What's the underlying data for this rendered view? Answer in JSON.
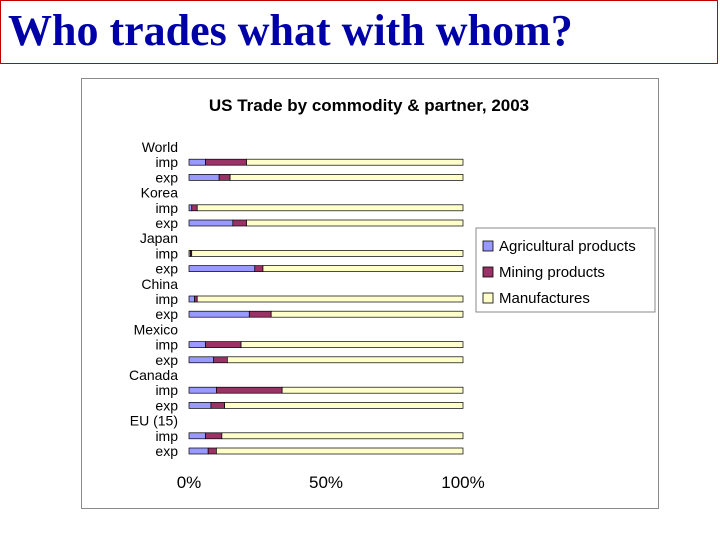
{
  "slide": {
    "title": "Who trades what with whom?"
  },
  "chart_data": {
    "type": "bar",
    "orientation": "horizontal",
    "stacked": "percent",
    "title": "US Trade by commodity & partner, 2003",
    "categories": [
      {
        "label": "World",
        "is_group_header": true
      },
      {
        "label": "imp"
      },
      {
        "label": "exp"
      },
      {
        "label": "Korea",
        "is_group_header": true
      },
      {
        "label": "imp"
      },
      {
        "label": "exp"
      },
      {
        "label": "Japan",
        "is_group_header": true
      },
      {
        "label": "imp"
      },
      {
        "label": "exp"
      },
      {
        "label": "China",
        "is_group_header": true
      },
      {
        "label": "imp"
      },
      {
        "label": "exp"
      },
      {
        "label": "Mexico",
        "is_group_header": true
      },
      {
        "label": "imp"
      },
      {
        "label": "exp"
      },
      {
        "label": "Canada",
        "is_group_header": true
      },
      {
        "label": "imp"
      },
      {
        "label": "exp"
      },
      {
        "label": "EU (15)",
        "is_group_header": true
      },
      {
        "label": "imp"
      },
      {
        "label": "exp"
      }
    ],
    "series": [
      {
        "name": "Agricultural products",
        "color": "#9999ff",
        "values": [
          null,
          6,
          11,
          null,
          1,
          16,
          null,
          0.5,
          24,
          null,
          2,
          22,
          null,
          6,
          9,
          null,
          10,
          8,
          null,
          6,
          7
        ]
      },
      {
        "name": "Mining products",
        "color": "#993366",
        "values": [
          null,
          15,
          4,
          null,
          2,
          5,
          null,
          0.5,
          3,
          null,
          1,
          8,
          null,
          13,
          5,
          null,
          24,
          5,
          null,
          6,
          3
        ]
      },
      {
        "name": "Manufactures",
        "color": "#ffffcc",
        "values": [
          null,
          79,
          85,
          null,
          97,
          79,
          null,
          99,
          73,
          null,
          97,
          70,
          null,
          81,
          86,
          null,
          66,
          87,
          null,
          88,
          90
        ]
      }
    ],
    "xlim": [
      0,
      100
    ],
    "xticks": [
      "0%",
      "50%",
      "100%"
    ],
    "legend_position": "right",
    "grid": false
  }
}
